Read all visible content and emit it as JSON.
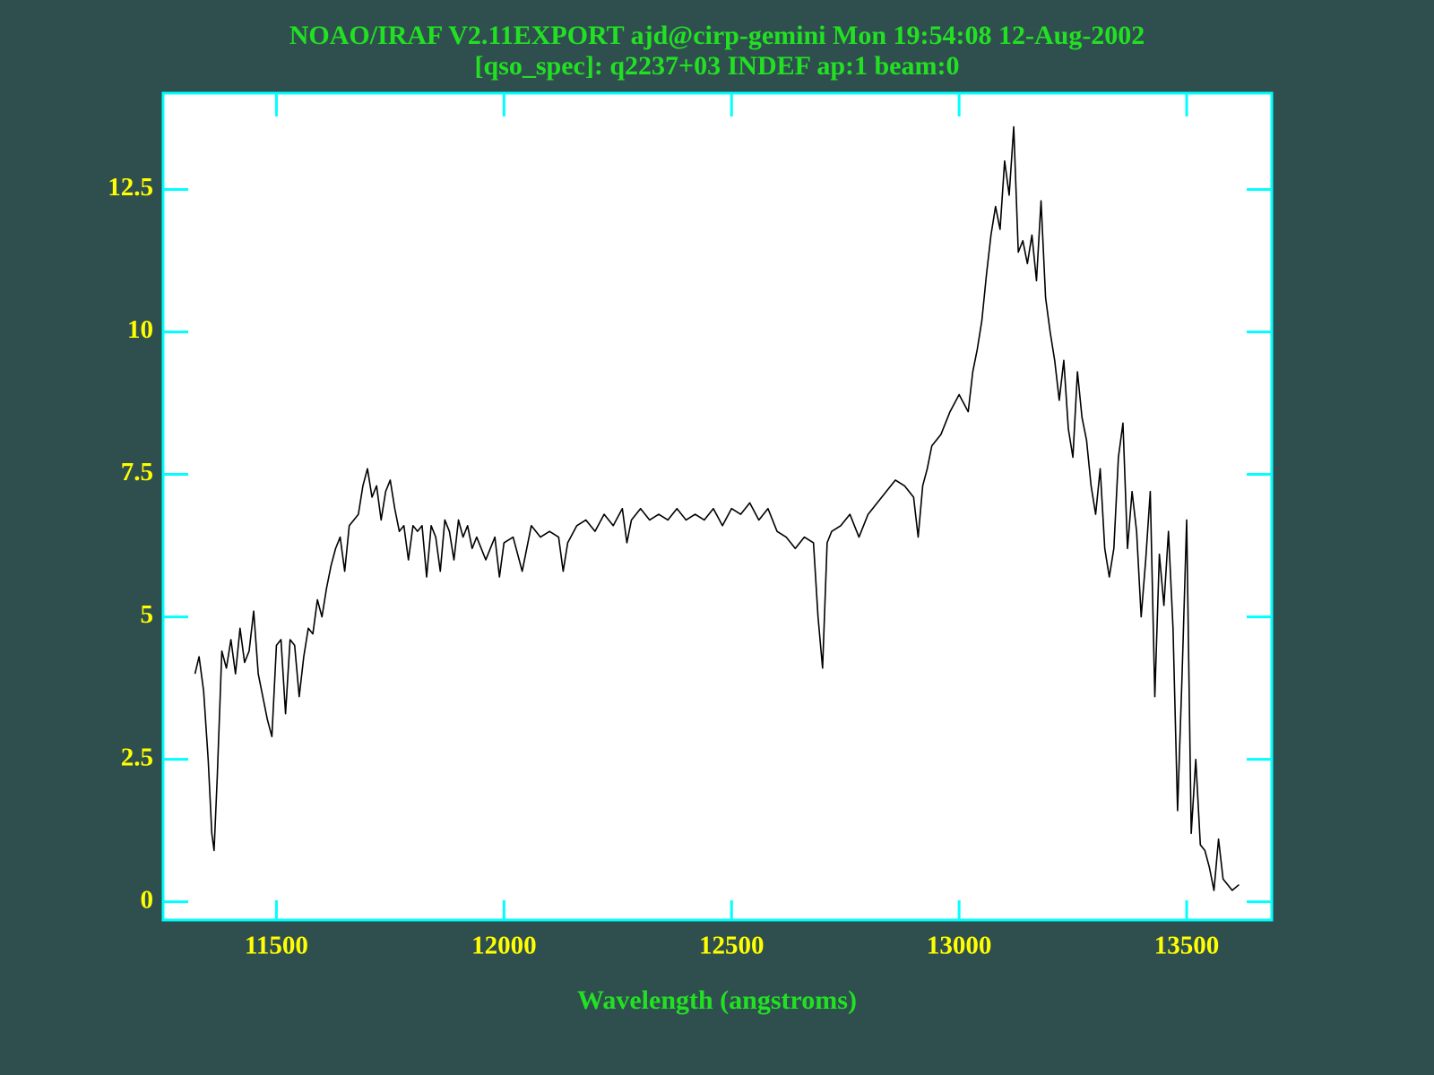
{
  "chart_data": {
    "type": "line",
    "title": "NOAO/IRAF V2.11EXPORT ajd@cirp-gemini Mon 19:54:08 12-Aug-2002",
    "subtitle": "[qso_spec]: q2237+03 INDEF ap:1 beam:0",
    "x_label": "Wavelength (angstroms)",
    "x": [
      11321,
      11330,
      11340,
      11350,
      11358,
      11363,
      11370,
      11380,
      11390,
      11400,
      11410,
      11420,
      11430,
      11440,
      11450,
      11460,
      11470,
      11480,
      11490,
      11500,
      11510,
      11520,
      11530,
      11540,
      11550,
      11560,
      11570,
      11580,
      11590,
      11600,
      11610,
      11620,
      11630,
      11640,
      11650,
      11660,
      11670,
      11680,
      11690,
      11700,
      11710,
      11720,
      11730,
      11740,
      11750,
      11760,
      11770,
      11780,
      11790,
      11800,
      11810,
      11820,
      11830,
      11840,
      11850,
      11860,
      11870,
      11880,
      11890,
      11900,
      11910,
      11920,
      11930,
      11940,
      11960,
      11980,
      11990,
      12000,
      12020,
      12040,
      12060,
      12080,
      12100,
      12120,
      12130,
      12140,
      12160,
      12180,
      12200,
      12220,
      12240,
      12260,
      12270,
      12280,
      12300,
      12320,
      12340,
      12360,
      12380,
      12400,
      12420,
      12440,
      12460,
      12480,
      12500,
      12520,
      12540,
      12560,
      12580,
      12600,
      12620,
      12640,
      12660,
      12680,
      12690,
      12700,
      12710,
      12720,
      12740,
      12760,
      12780,
      12800,
      12820,
      12840,
      12860,
      12880,
      12900,
      12910,
      12920,
      12930,
      12940,
      12960,
      12980,
      13000,
      13020,
      13030,
      13040,
      13050,
      13060,
      13070,
      13080,
      13090,
      13100,
      13110,
      13120,
      13130,
      13140,
      13150,
      13160,
      13170,
      13180,
      13190,
      13200,
      13210,
      13220,
      13230,
      13240,
      13250,
      13260,
      13270,
      13280,
      13290,
      13300,
      13310,
      13320,
      13330,
      13340,
      13350,
      13360,
      13370,
      13380,
      13390,
      13400,
      13410,
      13420,
      13430,
      13440,
      13450,
      13460,
      13470,
      13480,
      13490,
      13500,
      13510,
      13520,
      13530,
      13540,
      13550,
      13560,
      13570,
      13580,
      13590,
      13600,
      13615
    ],
    "series": [
      {
        "color": "#000000",
        "values": [
          4.0,
          4.3,
          3.7,
          2.5,
          1.2,
          0.9,
          2.2,
          4.4,
          4.1,
          4.6,
          4.0,
          4.8,
          4.2,
          4.4,
          5.1,
          4.0,
          3.6,
          3.2,
          2.9,
          4.5,
          4.6,
          3.3,
          4.6,
          4.5,
          3.6,
          4.3,
          4.8,
          4.7,
          5.3,
          5.0,
          5.5,
          5.9,
          6.2,
          6.4,
          5.8,
          6.6,
          6.7,
          6.8,
          7.3,
          7.6,
          7.1,
          7.3,
          6.7,
          7.2,
          7.4,
          6.9,
          6.5,
          6.6,
          6.0,
          6.6,
          6.5,
          6.6,
          5.7,
          6.6,
          6.4,
          5.8,
          6.7,
          6.5,
          6.0,
          6.7,
          6.4,
          6.6,
          6.2,
          6.4,
          6.0,
          6.4,
          5.7,
          6.3,
          6.4,
          5.8,
          6.6,
          6.4,
          6.5,
          6.4,
          5.8,
          6.3,
          6.6,
          6.7,
          6.5,
          6.8,
          6.6,
          6.9,
          6.3,
          6.7,
          6.9,
          6.7,
          6.8,
          6.7,
          6.9,
          6.7,
          6.8,
          6.7,
          6.9,
          6.6,
          6.9,
          6.8,
          7.0,
          6.7,
          6.9,
          6.5,
          6.4,
          6.2,
          6.4,
          6.3,
          5.0,
          4.1,
          6.3,
          6.5,
          6.6,
          6.8,
          6.4,
          6.8,
          7.0,
          7.2,
          7.4,
          7.3,
          7.1,
          6.4,
          7.3,
          7.6,
          8.0,
          8.2,
          8.6,
          8.9,
          8.6,
          9.3,
          9.7,
          10.2,
          11.0,
          11.7,
          12.2,
          11.8,
          13.0,
          12.4,
          13.6,
          11.4,
          11.6,
          11.2,
          11.7,
          10.9,
          12.3,
          10.6,
          10.0,
          9.5,
          8.8,
          9.5,
          8.3,
          7.8,
          9.3,
          8.5,
          8.1,
          7.3,
          6.8,
          7.6,
          6.2,
          5.7,
          6.2,
          7.8,
          8.4,
          6.2,
          7.2,
          6.5,
          5.0,
          6.0,
          7.2,
          3.6,
          6.1,
          5.2,
          6.5,
          4.8,
          1.6,
          4.0,
          6.7,
          1.2,
          2.5,
          1.0,
          0.9,
          0.6,
          0.2,
          1.1,
          0.4,
          0.3,
          0.2,
          0.3
        ]
      }
    ],
    "xlim": [
      11251,
      13687
    ],
    "ylim": [
      -0.32,
      14.19
    ],
    "xticks": [
      11500,
      12000,
      12500,
      13000,
      13500
    ],
    "yticks": [
      0,
      2.5,
      5,
      7.5,
      10,
      12.5
    ]
  }
}
